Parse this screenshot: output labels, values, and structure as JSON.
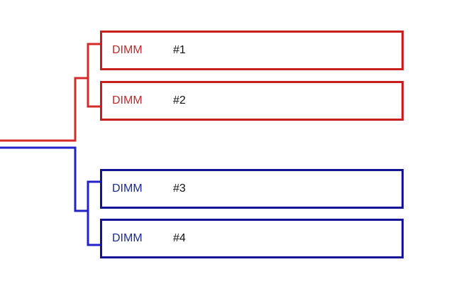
{
  "colors": {
    "red": "#cc2222",
    "blue": "#1a1aa0"
  },
  "groups": [
    {
      "color": "red",
      "modules": [
        {
          "label": "DIMM",
          "number": "#1"
        },
        {
          "label": "DIMM",
          "number": "#2"
        }
      ]
    },
    {
      "color": "blue",
      "modules": [
        {
          "label": "DIMM",
          "number": "#3"
        },
        {
          "label": "DIMM",
          "number": "#4"
        }
      ]
    }
  ]
}
